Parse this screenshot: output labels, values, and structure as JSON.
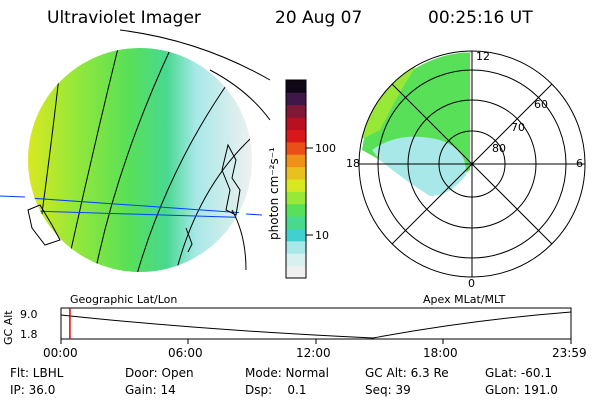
{
  "header": {
    "instrument": "Ultraviolet Imager",
    "date": "20 Aug 07",
    "time": "00:25:16 UT"
  },
  "colorbar": {
    "unit_label": "photon cm⁻²s⁻¹",
    "ticks": [
      "100",
      "10"
    ],
    "scale": "log",
    "colors": [
      "#f0f0f0",
      "#d8f0f0",
      "#a8e8e8",
      "#40d0d0",
      "#48d890",
      "#58e058",
      "#98e838",
      "#d8e820",
      "#e8c020",
      "#f09018",
      "#e85018",
      "#d81818",
      "#b81020",
      "#801838",
      "#401848",
      "#100818"
    ]
  },
  "panels": {
    "left_label": "Geographic Lat/Lon",
    "right_label": "Apex MLat/MLT",
    "polar_labels": [
      "12",
      "60",
      "70",
      "80",
      "18",
      "6",
      "0"
    ]
  },
  "timeline": {
    "y_label": "GC Alt",
    "y_ticks": [
      "9.0",
      "1.8"
    ],
    "x_ticks": [
      "00:00",
      "06:00",
      "12:00",
      "18:00",
      "23:59"
    ],
    "current_time_fraction": 0.0175
  },
  "footer": [
    [
      "Flt: LBHL",
      "Door: Open",
      "Mode: Normal",
      "GC Alt: 6.3 Re",
      "GLat: -60.1"
    ],
    [
      "IP: 36.0",
      "Gain: 14",
      "Dsp:    0.1",
      "Seq: 39",
      "GLon: 191.0"
    ]
  ]
}
